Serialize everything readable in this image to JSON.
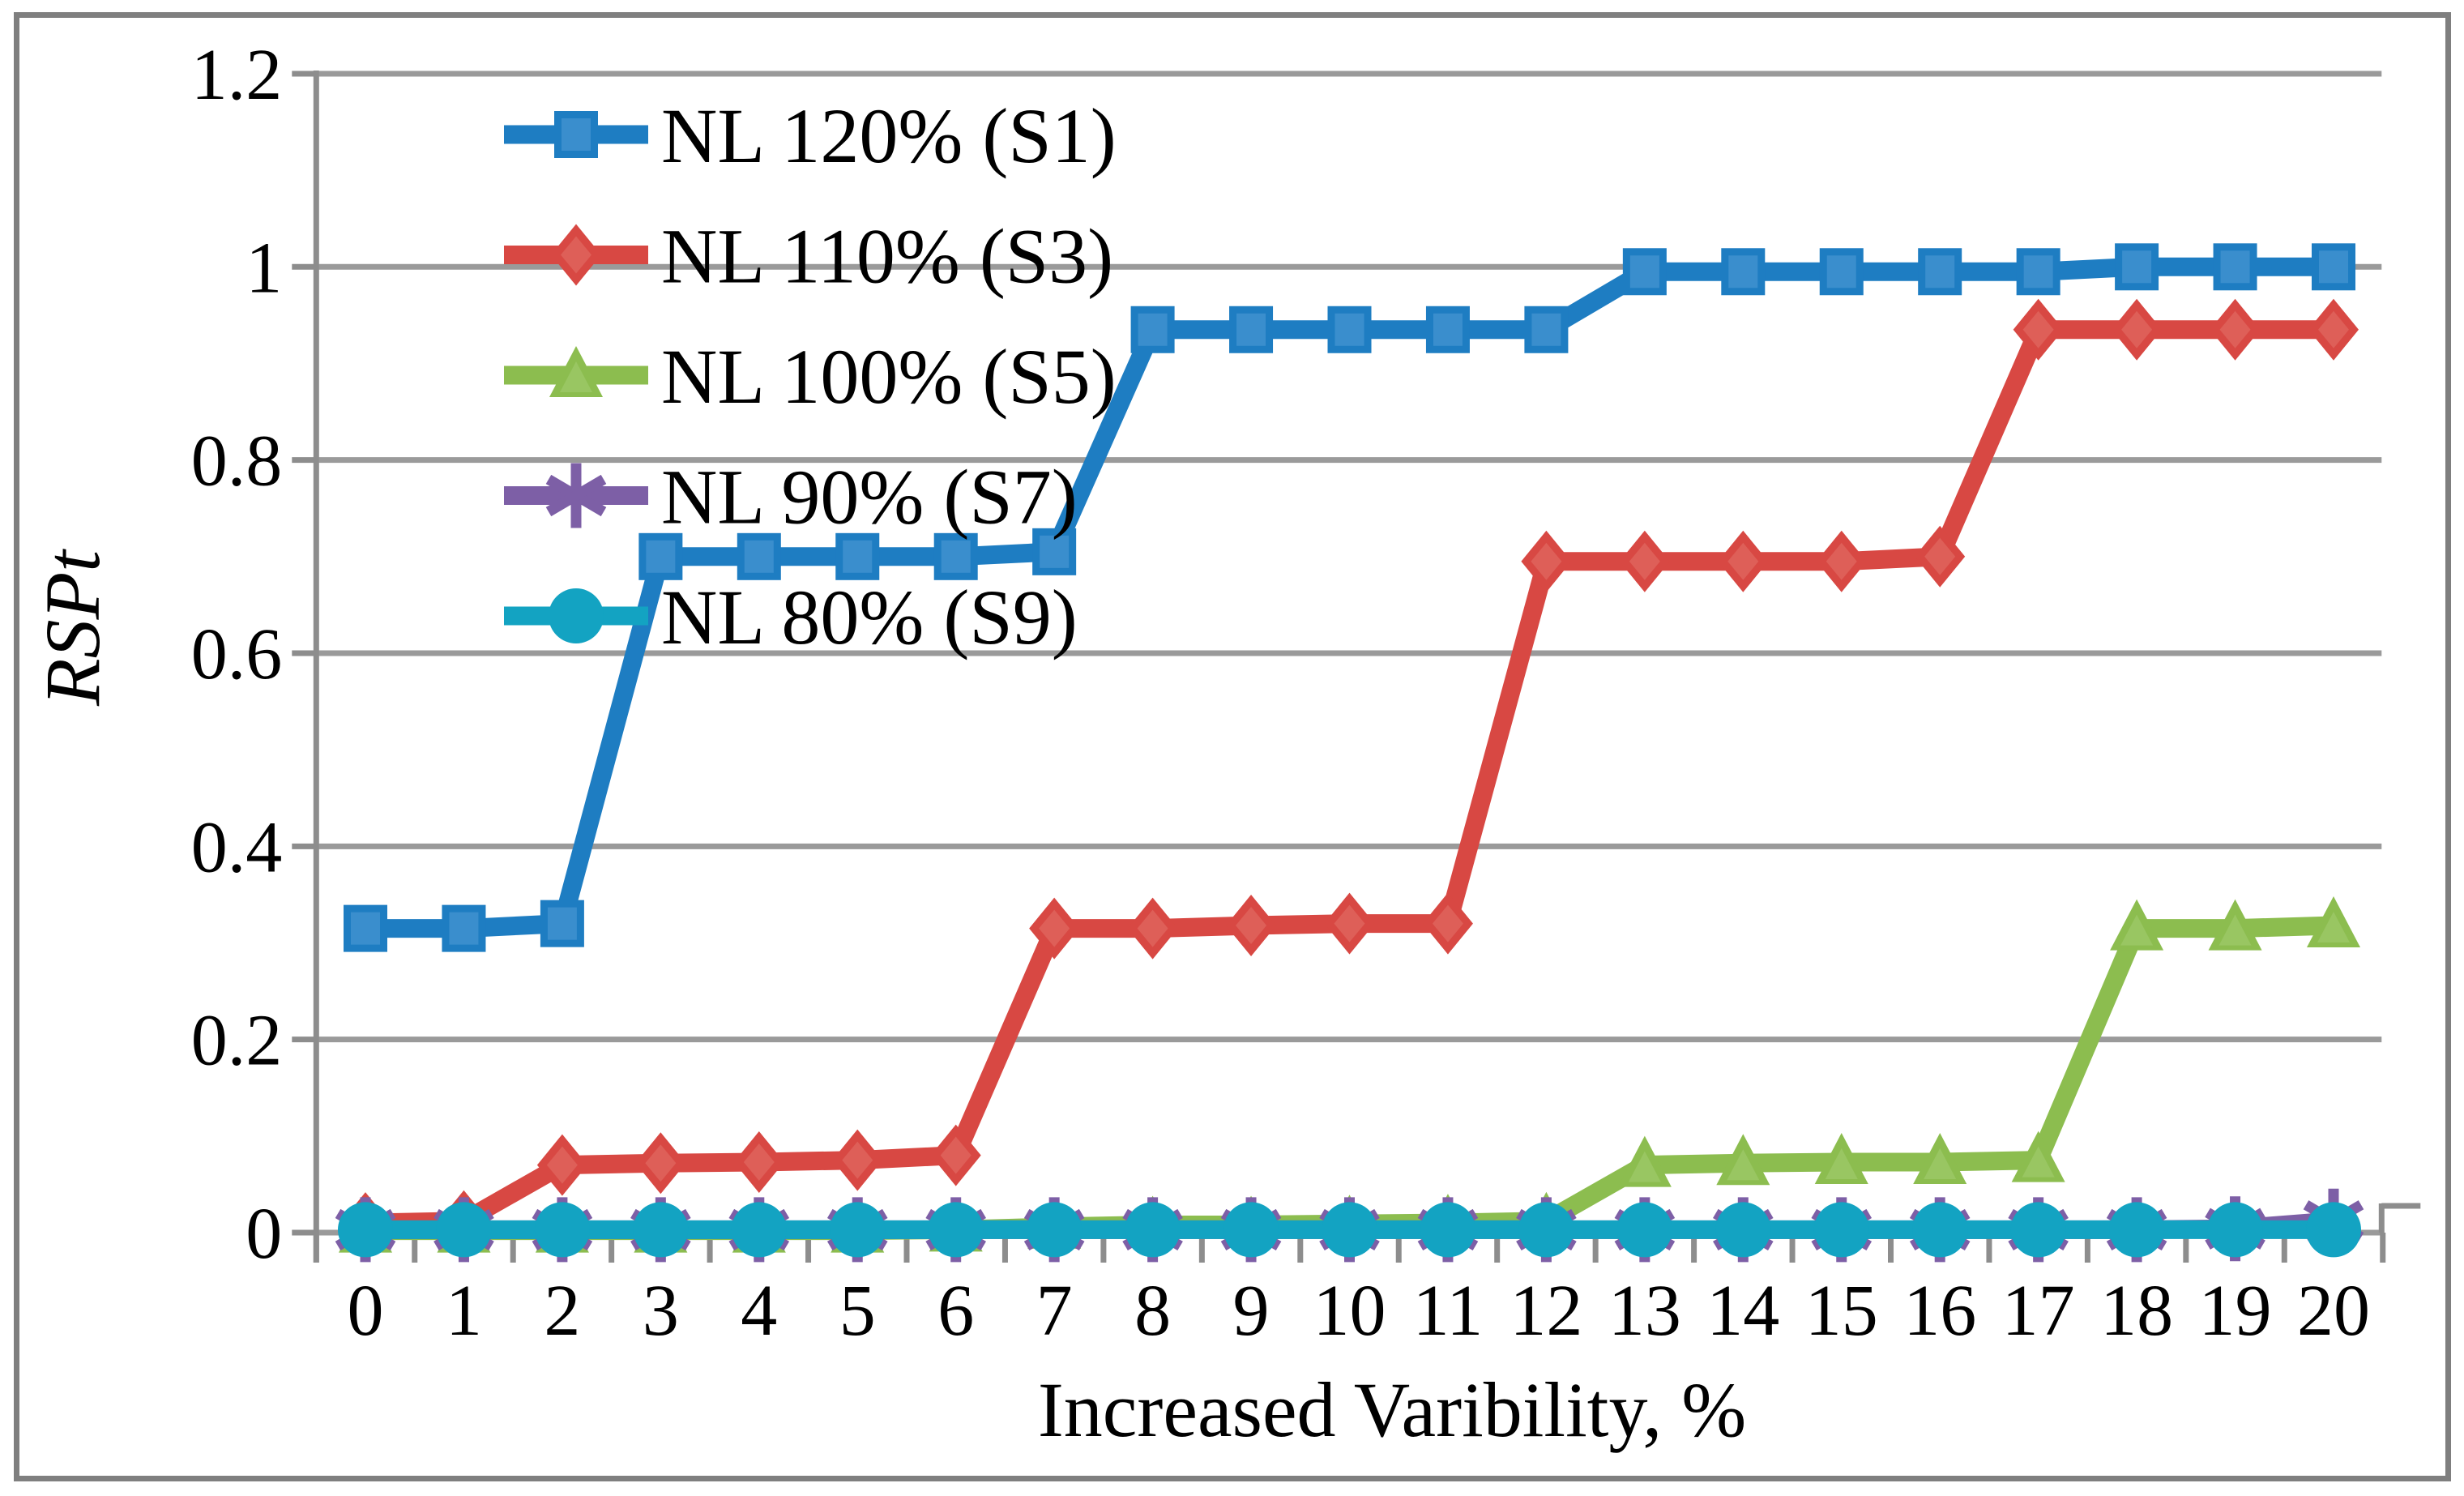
{
  "figure": {
    "background": "#ffffff",
    "border_color": "#7f7f7f"
  },
  "chart_data": {
    "type": "line",
    "title": "",
    "xlabel": "Increased Varibility, %",
    "ylabel": "RSPt",
    "x": [
      0,
      1,
      2,
      3,
      4,
      5,
      6,
      7,
      8,
      9,
      10,
      11,
      12,
      13,
      14,
      15,
      16,
      17,
      18,
      19,
      20
    ],
    "ylim": [
      0,
      1.2
    ],
    "ytick_interval": 0.2,
    "ytick_labels": [
      "0",
      "0.2",
      "0.4",
      "0.6",
      "0.8",
      "1",
      "1.2"
    ],
    "grid": "horizontal-only",
    "grid_color": "#9a9a9a",
    "axis_color": "#8d8d8d",
    "text_color": "#000000",
    "legend_position": "inside-top-left",
    "series": [
      {
        "name": "NL 120% (S1)",
        "marker": "square",
        "color": "#1e7dc2",
        "color_light": "#3a8ecd",
        "values": [
          0.315,
          0.315,
          0.32,
          0.7,
          0.7,
          0.7,
          0.7,
          0.705,
          0.935,
          0.935,
          0.935,
          0.935,
          0.935,
          0.995,
          0.995,
          0.995,
          0.995,
          0.995,
          1.0,
          1.0,
          1.0
        ]
      },
      {
        "name": "NL 110% (S3)",
        "marker": "diamond",
        "color": "#d84843",
        "color_light": "#de5f58",
        "values": [
          0.01,
          0.012,
          0.07,
          0.072,
          0.073,
          0.075,
          0.08,
          0.315,
          0.315,
          0.318,
          0.32,
          0.32,
          0.695,
          0.695,
          0.695,
          0.695,
          0.7,
          0.935,
          0.935,
          0.935,
          0.935
        ]
      },
      {
        "name": "NL 100% (S5)",
        "marker": "triangle",
        "color": "#8cbd4f",
        "color_light": "#99c662",
        "values": [
          0.002,
          0.002,
          0.002,
          0.002,
          0.002,
          0.002,
          0.003,
          0.006,
          0.008,
          0.008,
          0.009,
          0.01,
          0.012,
          0.07,
          0.072,
          0.073,
          0.073,
          0.075,
          0.315,
          0.315,
          0.318
        ]
      },
      {
        "name": "NL 90% (S7)",
        "marker": "asterisk",
        "color": "#7d5fa6",
        "values": [
          0.003,
          0.003,
          0.003,
          0.003,
          0.003,
          0.003,
          0.003,
          0.003,
          0.003,
          0.003,
          0.003,
          0.003,
          0.003,
          0.003,
          0.003,
          0.003,
          0.003,
          0.003,
          0.003,
          0.004,
          0.012
        ]
      },
      {
        "name": "NL 80% (S9)",
        "marker": "circle",
        "color": "#13a3c2",
        "values": [
          0.003,
          0.003,
          0.003,
          0.003,
          0.003,
          0.003,
          0.003,
          0.003,
          0.003,
          0.003,
          0.003,
          0.003,
          0.003,
          0.003,
          0.003,
          0.003,
          0.003,
          0.003,
          0.003,
          0.003,
          0.003
        ]
      }
    ]
  }
}
